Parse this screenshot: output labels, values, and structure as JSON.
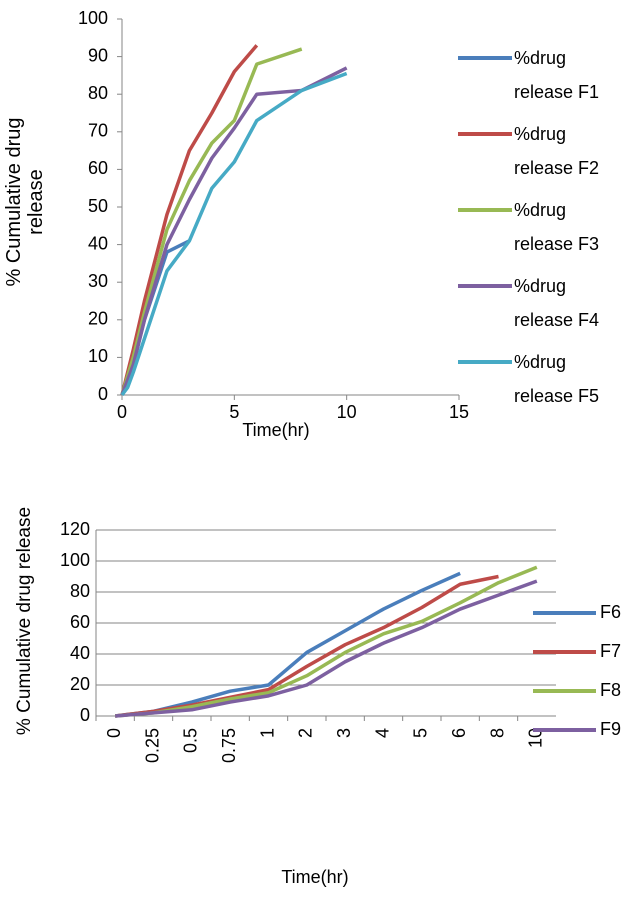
{
  "chart_data": [
    {
      "type": "line",
      "x_label": "Time(hr)",
      "y_label": "% Cumulative drug release",
      "xlim": [
        0,
        15
      ],
      "xticks": [
        0,
        5,
        10,
        15
      ],
      "ylim": [
        0,
        100
      ],
      "yticks": [
        0,
        10,
        20,
        30,
        40,
        50,
        60,
        70,
        80,
        90,
        100
      ],
      "series": [
        {
          "name": "%drug release F1",
          "color": "#4a7ebb",
          "x": [
            0,
            0.5,
            1,
            2,
            3
          ],
          "values": [
            0,
            8,
            20,
            38,
            41
          ]
        },
        {
          "name": "%drug release F2",
          "color": "#be4b48",
          "x": [
            0,
            0.5,
            1,
            2,
            3,
            4,
            5,
            6
          ],
          "values": [
            0,
            12,
            25,
            48,
            65,
            75,
            86,
            93
          ]
        },
        {
          "name": "%drug release F3",
          "color": "#98b954",
          "x": [
            0,
            0.5,
            1,
            2,
            3,
            4,
            5,
            6,
            8
          ],
          "values": [
            0,
            10,
            22,
            44,
            57,
            67,
            73,
            88,
            92
          ]
        },
        {
          "name": "%drug release F4",
          "color": "#7d60a0",
          "x": [
            0,
            0.5,
            1,
            2,
            3,
            4,
            5,
            6,
            8,
            10
          ],
          "values": [
            0,
            8,
            20,
            40,
            52,
            63,
            71,
            80,
            81,
            87
          ]
        },
        {
          "name": "%drug release F5",
          "color": "#46aac5",
          "x": [
            0,
            0.25,
            0.5,
            1,
            2,
            3,
            4,
            5,
            6,
            8,
            10
          ],
          "values": [
            0,
            2,
            6,
            15,
            33,
            41,
            55,
            62,
            73,
            81,
            85.5
          ]
        }
      ]
    },
    {
      "type": "line",
      "x_label": "Time(hr)",
      "y_label": "% Cumulative drug release",
      "categories": [
        "0",
        "0.25",
        "0.5",
        "0.75",
        "1",
        "2",
        "3",
        "4",
        "5",
        "6",
        "8",
        "10"
      ],
      "ylim": [
        0,
        120
      ],
      "yticks": [
        0,
        20,
        40,
        60,
        80,
        100,
        120
      ],
      "series": [
        {
          "name": "F6",
          "color": "#4a7ebb",
          "values": [
            0,
            3,
            9,
            16,
            20,
            41,
            55,
            69,
            81,
            92,
            null,
            null
          ]
        },
        {
          "name": "F7",
          "color": "#be4b48",
          "values": [
            0,
            3,
            7,
            12,
            17,
            32,
            46,
            57,
            70,
            85,
            90,
            null
          ]
        },
        {
          "name": "F8",
          "color": "#98b954",
          "values": [
            0,
            2,
            6,
            11,
            15,
            26,
            41,
            53,
            61,
            73,
            86,
            96
          ]
        },
        {
          "name": "F9",
          "color": "#7d60a0",
          "values": [
            0,
            2,
            4,
            9,
            13,
            20,
            35,
            47,
            57,
            69,
            78,
            87
          ]
        }
      ]
    }
  ]
}
